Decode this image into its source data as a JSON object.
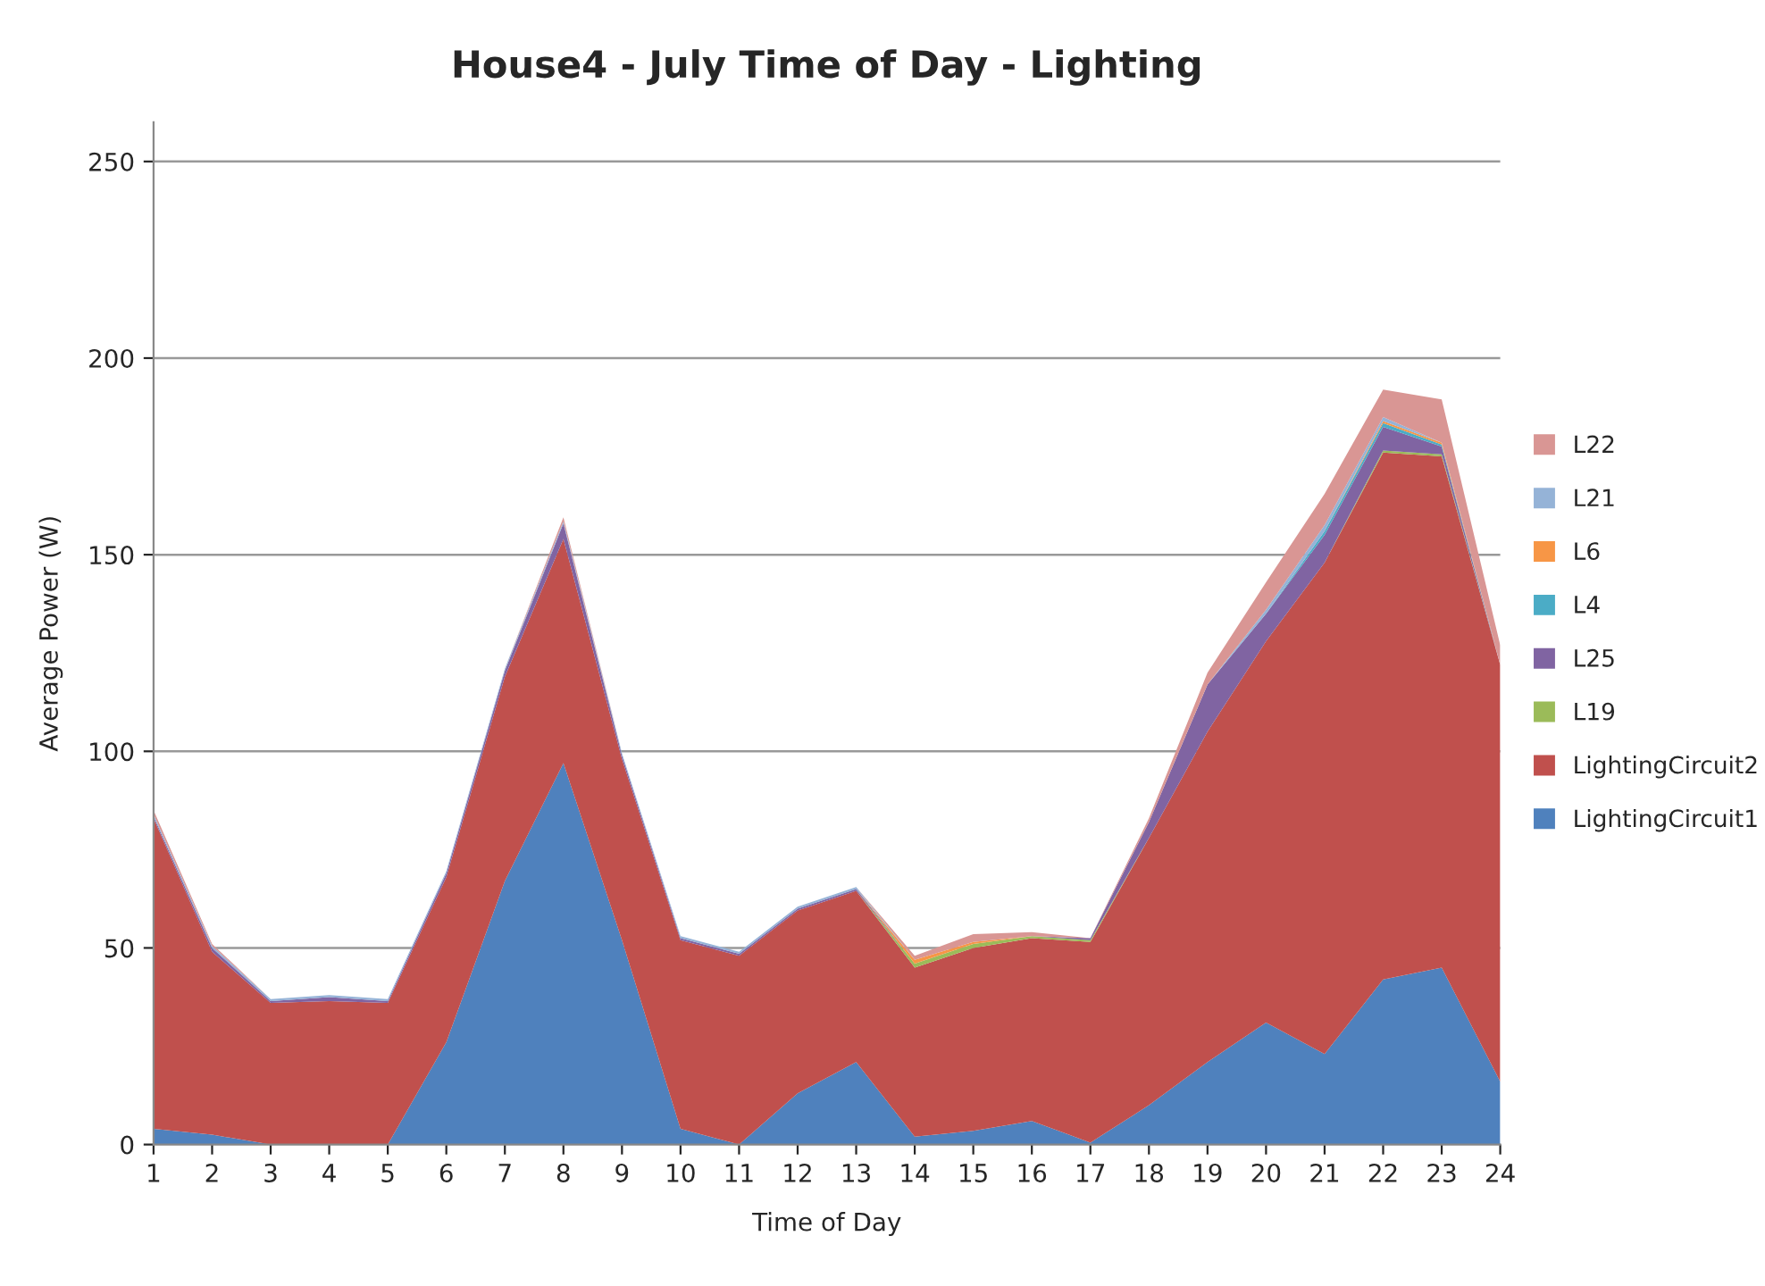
{
  "chart_data": {
    "type": "area",
    "stacked": true,
    "title": "House4 - July Time of Day - Lighting",
    "xlabel": "Time of Day",
    "ylabel": "Average Power (W)",
    "x": [
      1,
      2,
      3,
      4,
      5,
      6,
      7,
      8,
      9,
      10,
      11,
      12,
      13,
      14,
      15,
      16,
      17,
      18,
      19,
      20,
      21,
      22,
      23,
      24
    ],
    "xlim": [
      1,
      24
    ],
    "xticks": [
      1,
      2,
      3,
      4,
      5,
      6,
      7,
      8,
      9,
      10,
      11,
      12,
      13,
      14,
      15,
      16,
      17,
      18,
      19,
      20,
      21,
      22,
      23,
      24
    ],
    "ylim": [
      0,
      260
    ],
    "yticks": [
      0,
      50,
      100,
      150,
      200,
      250
    ],
    "grid": "y",
    "legend": "right",
    "series": [
      {
        "name": "LightingCircuit1",
        "color": "#4f81bd",
        "values": [
          4,
          2.5,
          0,
          0,
          0,
          26,
          67,
          97,
          52,
          4,
          0,
          13,
          21,
          2,
          3.5,
          6,
          0.5,
          10,
          21,
          31,
          23,
          42,
          45,
          16
        ]
      },
      {
        "name": "LightingCircuit2",
        "color": "#c0504d",
        "values": [
          79,
          46.5,
          36,
          36.5,
          36,
          42,
          52,
          57,
          46,
          48,
          48,
          46.5,
          43.5,
          43,
          46.5,
          46.5,
          51,
          68,
          84,
          97,
          125,
          134,
          130,
          106
        ]
      },
      {
        "name": "L19",
        "color": "#9bbb59",
        "values": [
          0,
          0,
          0,
          0,
          0,
          0,
          0,
          0,
          0,
          0,
          0,
          0,
          0,
          1,
          1,
          0.5,
          0.5,
          0,
          0,
          0,
          0,
          0.5,
          0.5,
          0
        ]
      },
      {
        "name": "L25",
        "color": "#8064a2",
        "values": [
          0.5,
          1,
          0.5,
          1,
          0.5,
          1,
          1.5,
          4,
          1,
          0.5,
          0.5,
          0.5,
          0.5,
          0,
          0,
          0,
          0.5,
          4,
          12,
          7,
          7,
          6,
          2,
          0
        ]
      },
      {
        "name": "L4",
        "color": "#4bacc6",
        "values": [
          0,
          0,
          0,
          0,
          0,
          0,
          0,
          0,
          0,
          0,
          0,
          0,
          0,
          0,
          0,
          0,
          0,
          0,
          0,
          0,
          1,
          1,
          0.5,
          0
        ]
      },
      {
        "name": "L6",
        "color": "#f79646",
        "values": [
          0,
          0,
          0,
          0,
          0,
          0,
          0,
          0,
          0,
          0,
          0,
          0,
          0,
          1,
          0.5,
          0,
          0,
          0,
          0,
          0,
          0,
          0.5,
          0.5,
          0
        ]
      },
      {
        "name": "L21",
        "color": "#95b3d7",
        "values": [
          0.5,
          0.5,
          0.5,
          0.5,
          0.5,
          0.5,
          0.5,
          0.5,
          0.5,
          0.5,
          0.5,
          0.5,
          0.5,
          0,
          0,
          0,
          0,
          0,
          0,
          1,
          1.5,
          1,
          0,
          0
        ]
      },
      {
        "name": "L22",
        "color": "#d99694",
        "values": [
          1,
          0.5,
          0,
          0,
          0,
          0,
          0,
          1,
          0,
          0,
          0,
          0,
          0,
          1,
          2,
          1,
          0,
          1,
          3,
          7,
          8,
          7,
          11,
          5
        ]
      }
    ]
  }
}
